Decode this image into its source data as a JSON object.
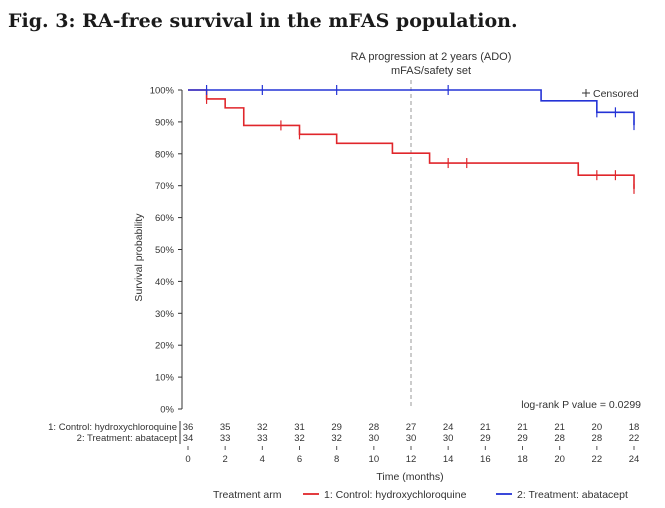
{
  "figure_title": "Fig. 3: RA-free survival in the mFAS population.",
  "chart_data": {
    "type": "line",
    "title": "RA progression at 2 years (ADO)",
    "subtitle": "mFAS/safety set",
    "xlabel": "Time (months)",
    "ylabel": "Survival probability",
    "xlim": [
      0,
      24
    ],
    "ylim": [
      0,
      100
    ],
    "x_ticks": [
      0,
      2,
      4,
      6,
      8,
      10,
      12,
      14,
      16,
      18,
      20,
      22,
      24
    ],
    "y_ticks": [
      0,
      10,
      20,
      30,
      40,
      50,
      60,
      70,
      80,
      90,
      100
    ],
    "y_tick_labels": [
      "0%",
      "10%",
      "20%",
      "30%",
      "40%",
      "50%",
      "60%",
      "70%",
      "80%",
      "90%",
      "100%"
    ],
    "reference_line_x": 12,
    "censored_label": "Censored",
    "annotation": "log-rank P value = 0.0299",
    "legend_title": "Treatment arm",
    "legend_position": "bottom",
    "series": [
      {
        "name": "1: Control: hydroxychloroquine",
        "color": "#e0262b",
        "steps": [
          [
            0,
            100
          ],
          [
            1,
            97.2
          ],
          [
            2,
            94.4
          ],
          [
            3,
            88.9
          ],
          [
            6,
            86.1
          ],
          [
            8,
            83.3
          ],
          [
            11,
            80.2
          ],
          [
            13,
            77.1
          ],
          [
            21,
            73.3
          ],
          [
            24,
            69.0
          ]
        ],
        "censored": [
          [
            1,
            97.2
          ],
          [
            5,
            88.9
          ],
          [
            6,
            86.1
          ],
          [
            14,
            77.1
          ],
          [
            15,
            77.1
          ],
          [
            22,
            73.3
          ],
          [
            23,
            73.3
          ],
          [
            24,
            69.0
          ]
        ]
      },
      {
        "name": "2: Treatment: abatacept",
        "color": "#2433d6",
        "steps": [
          [
            0,
            100
          ],
          [
            19,
            96.6
          ],
          [
            22,
            93.0
          ],
          [
            24,
            89.0
          ]
        ],
        "censored": [
          [
            1,
            100
          ],
          [
            4,
            100
          ],
          [
            8,
            100
          ],
          [
            14,
            100
          ],
          [
            22,
            93.0
          ],
          [
            23,
            93.0
          ],
          [
            24,
            89.0
          ]
        ]
      }
    ],
    "risk_table": {
      "times": [
        0,
        2,
        4,
        6,
        8,
        10,
        12,
        14,
        16,
        18,
        20,
        22,
        24
      ],
      "rows": [
        {
          "label": "1: Control: hydroxychloroquine",
          "counts": [
            "36",
            "35",
            "32",
            "31",
            "29",
            "28",
            "27",
            "24",
            "21",
            "21",
            "21",
            "20",
            "18"
          ]
        },
        {
          "label": "2: Treatment: abatacept",
          "counts": [
            "34",
            "33",
            "33",
            "32",
            "32",
            "30",
            "30",
            "30",
            "29",
            "29",
            "28",
            "28",
            "22"
          ]
        }
      ]
    }
  }
}
